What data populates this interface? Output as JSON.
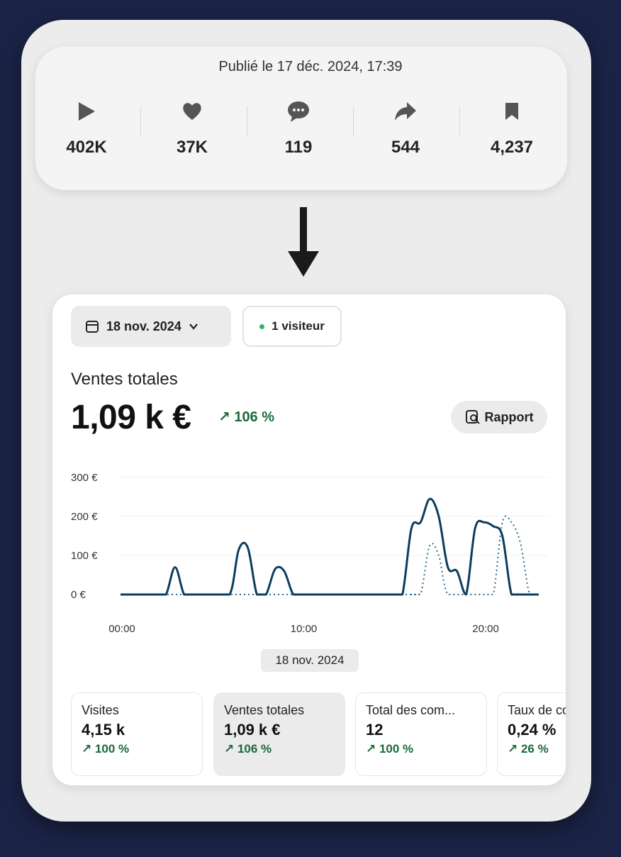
{
  "social": {
    "published": "Publié le 17 déc. 2024, 17:39",
    "stats": [
      {
        "icon": "play-icon",
        "value": "402K"
      },
      {
        "icon": "heart-icon",
        "value": "37K"
      },
      {
        "icon": "comment-icon",
        "value": "119"
      },
      {
        "icon": "share-icon",
        "value": "544"
      },
      {
        "icon": "bookmark-icon",
        "value": "4,237"
      }
    ]
  },
  "arrow_icon": "arrow-down-icon",
  "shop": {
    "date_filter": "18 nov. 2024",
    "visitors": "1 visiteur",
    "sales_label": "Ventes totales",
    "sales_value": "1,09 k €",
    "sales_change": "↗ 106 %",
    "report_button": "Rapport",
    "date_pill": "18 nov. 2024",
    "metrics": [
      {
        "label": "Visites",
        "value": "4,15 k",
        "change": "↗ 100 %"
      },
      {
        "label": "Ventes totales",
        "value": "1,09 k €",
        "change": "↗ 106 %"
      },
      {
        "label": "Total des com...",
        "value": "12",
        "change": "↗ 100 %"
      },
      {
        "label": "Taux de conversion",
        "value": "0,24 %",
        "change": "↗ 26 %"
      }
    ],
    "colors": {
      "positive": "#1a6b3b",
      "line": "#0b3d5c",
      "online": "#2fb36a"
    }
  },
  "chart_data": {
    "type": "line",
    "x_ticks": [
      "00:00",
      "10:00",
      "20:00"
    ],
    "y_ticks": [
      "0 €",
      "100 €",
      "200 €",
      "300 €"
    ],
    "ylim": [
      0,
      300
    ],
    "xlim": [
      0,
      23
    ],
    "series": [
      {
        "style": "solid",
        "x": [
          0,
          1,
          2,
          2.5,
          3,
          3.5,
          4,
          5,
          6,
          6.5,
          7,
          7.5,
          8,
          8.5,
          9,
          9.5,
          10,
          11,
          12,
          13,
          14,
          15,
          15.5,
          16,
          16.5,
          17,
          17.5,
          18,
          18.5,
          19,
          19.5,
          20,
          20.5,
          21,
          21.5,
          22,
          22.5,
          23
        ],
        "values": [
          0,
          0,
          0,
          0,
          70,
          0,
          0,
          0,
          0,
          115,
          120,
          0,
          0,
          65,
          60,
          0,
          0,
          0,
          0,
          0,
          0,
          0,
          0,
          170,
          185,
          245,
          200,
          70,
          60,
          0,
          170,
          185,
          175,
          150,
          0,
          0,
          0,
          0
        ]
      },
      {
        "style": "dashed",
        "x": [
          0,
          15,
          16,
          16.5,
          17,
          17.5,
          18,
          19,
          20,
          20.5,
          21,
          21.5,
          22,
          22.5,
          23
        ],
        "values": [
          0,
          0,
          0,
          0,
          125,
          100,
          0,
          0,
          0,
          0,
          185,
          185,
          130,
          0,
          0
        ]
      }
    ]
  }
}
